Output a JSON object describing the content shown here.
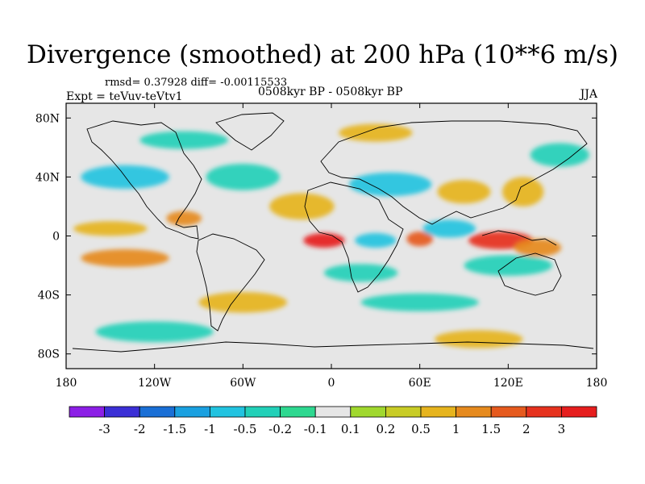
{
  "title": "Divergence (smoothed) at 200 hPa (10**6 m/s)",
  "stats": "rmsd= 0.37928 diff= -0.00115533",
  "experiment": "Expt = teVuv-teVtv1",
  "period": "0508kyr BP - 0508kyr BP",
  "season": "JJA",
  "map": {
    "projection": "cylindrical equidistant",
    "lon_range": [
      -180,
      180
    ],
    "lat_range": [
      -90,
      90
    ],
    "lon_ticks": [
      {
        "value": -180,
        "label": "180"
      },
      {
        "value": -120,
        "label": "120W"
      },
      {
        "value": -60,
        "label": "60W"
      },
      {
        "value": 0,
        "label": "0"
      },
      {
        "value": 60,
        "label": "60E"
      },
      {
        "value": 120,
        "label": "120E"
      },
      {
        "value": 180,
        "label": "180"
      }
    ],
    "lat_ticks": [
      {
        "value": 80,
        "label": "80N"
      },
      {
        "value": 40,
        "label": "40N"
      },
      {
        "value": 0,
        "label": "0"
      },
      {
        "value": -40,
        "label": "40S"
      },
      {
        "value": -80,
        "label": "80S"
      }
    ],
    "background_color": "#e6e6e6",
    "coastline_color": "#000000"
  },
  "colorbar": {
    "labels": [
      "-3",
      "-2",
      "-1.5",
      "-1",
      "-0.5",
      "-0.2",
      "-0.1",
      "0.1",
      "0.2",
      "0.5",
      "1",
      "1.5",
      "2",
      "3"
    ],
    "colors": [
      "#8c1fe6",
      "#3b2fd6",
      "#1a6fd6",
      "#1aa0e0",
      "#22c3e0",
      "#22d0b8",
      "#2ed890",
      "#e6e6e6",
      "#a0d82e",
      "#c8cc26",
      "#e6b41e",
      "#e68a1e",
      "#e65a1e",
      "#e6321e",
      "#e61e1e"
    ]
  },
  "chart_data": {
    "type": "heatmap",
    "title": "Divergence (smoothed) at 200 hPa (10**6 m/s)",
    "field_levels": [
      -3,
      -2,
      -1.5,
      -1,
      -0.5,
      -0.2,
      -0.1,
      0.1,
      0.2,
      0.5,
      1,
      1.5,
      2,
      3
    ],
    "features": [
      {
        "lon": -5,
        "lat": -3,
        "value": 3,
        "rx": 14,
        "ry": 5
      },
      {
        "lon": 30,
        "lat": -3,
        "value": -1,
        "rx": 14,
        "ry": 5
      },
      {
        "lon": 60,
        "lat": -2,
        "value": 1.5,
        "rx": 9,
        "ry": 5
      },
      {
        "lon": 115,
        "lat": -3,
        "value": 2,
        "rx": 22,
        "ry": 6
      },
      {
        "lon": 140,
        "lat": -8,
        "value": 1,
        "rx": 16,
        "ry": 6
      },
      {
        "lon": -100,
        "lat": 12,
        "value": 1,
        "rx": 12,
        "ry": 5
      },
      {
        "lon": -150,
        "lat": 5,
        "value": 0.5,
        "rx": 25,
        "ry": 5
      },
      {
        "lon": -140,
        "lat": -15,
        "value": 1,
        "rx": 30,
        "ry": 6
      },
      {
        "lon": -20,
        "lat": 20,
        "value": 0.5,
        "rx": 22,
        "ry": 9
      },
      {
        "lon": 40,
        "lat": 35,
        "value": -1,
        "rx": 28,
        "ry": 8
      },
      {
        "lon": 90,
        "lat": 30,
        "value": 0.5,
        "rx": 18,
        "ry": 8
      },
      {
        "lon": 130,
        "lat": 30,
        "value": 0.5,
        "rx": 14,
        "ry": 10
      },
      {
        "lon": 155,
        "lat": 55,
        "value": -0.5,
        "rx": 20,
        "ry": 8
      },
      {
        "lon": -140,
        "lat": 40,
        "value": -1,
        "rx": 30,
        "ry": 8
      },
      {
        "lon": -60,
        "lat": 40,
        "value": -0.5,
        "rx": 25,
        "ry": 9
      },
      {
        "lon": 80,
        "lat": 5,
        "value": -1,
        "rx": 18,
        "ry": 6
      },
      {
        "lon": 20,
        "lat": -25,
        "value": -0.5,
        "rx": 25,
        "ry": 6
      },
      {
        "lon": 120,
        "lat": -20,
        "value": -0.5,
        "rx": 30,
        "ry": 7
      },
      {
        "lon": -60,
        "lat": -45,
        "value": 0.5,
        "rx": 30,
        "ry": 7
      },
      {
        "lon": 60,
        "lat": -45,
        "value": -0.5,
        "rx": 40,
        "ry": 6
      },
      {
        "lon": -120,
        "lat": -65,
        "value": -0.5,
        "rx": 40,
        "ry": 7
      },
      {
        "lon": 100,
        "lat": -70,
        "value": 0.5,
        "rx": 30,
        "ry": 6
      },
      {
        "lon": 30,
        "lat": 70,
        "value": 0.5,
        "rx": 25,
        "ry": 6
      },
      {
        "lon": -100,
        "lat": 65,
        "value": -0.5,
        "rx": 30,
        "ry": 6
      }
    ]
  }
}
